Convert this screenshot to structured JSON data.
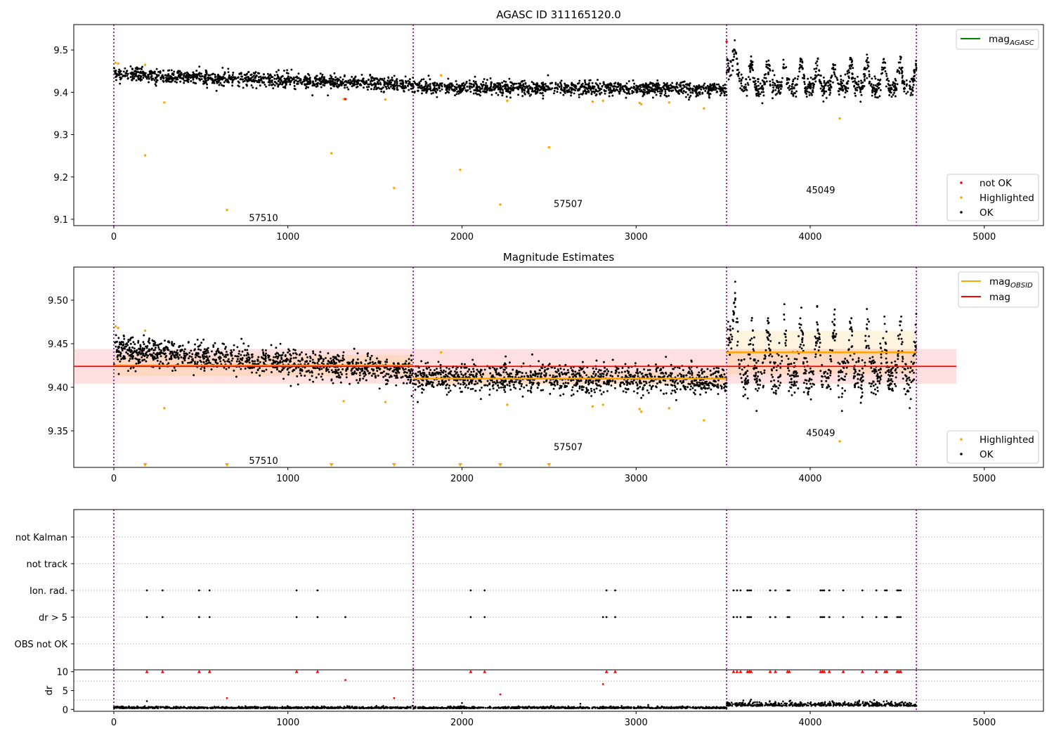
{
  "chart_data": [
    {
      "type": "scatter",
      "title": "AGASC ID 311165120.0",
      "xlabel": "",
      "ylabel": "",
      "xlim": [
        -230,
        5340
      ],
      "ylim": [
        9.085,
        9.56
      ],
      "xticks": [
        0,
        1000,
        2000,
        3000,
        4000,
        5000
      ],
      "yticks": [
        9.1,
        9.2,
        9.3,
        9.4,
        9.5
      ],
      "vlines": [
        0,
        1720,
        3520,
        4610
      ],
      "obsid_labels": [
        {
          "text": "57510",
          "x": 860,
          "y": 9.104
        },
        {
          "text": "57507",
          "x": 2610,
          "y": 9.137
        },
        {
          "text": "45049",
          "x": 4060,
          "y": 9.17
        }
      ],
      "line_legend": [
        {
          "name": "mag$_{AGASC}$",
          "label": "mag",
          "sub": "AGASC",
          "color": "#008000"
        }
      ],
      "point_legend": [
        {
          "name": "not OK",
          "color": "#ff0000"
        },
        {
          "name": "Highlighted",
          "color": "#ffa500"
        },
        {
          "name": "OK",
          "color": "#000000"
        }
      ],
      "highlighted": [
        [
          10,
          9.47
        ],
        [
          25,
          9.468
        ],
        [
          180,
          9.465
        ],
        [
          180,
          9.251
        ],
        [
          290,
          9.376
        ],
        [
          650,
          9.122
        ],
        [
          1250,
          9.256
        ],
        [
          1320,
          9.384
        ],
        [
          1560,
          9.383
        ],
        [
          1610,
          9.174
        ],
        [
          1880,
          9.44
        ],
        [
          1990,
          9.217
        ],
        [
          2220,
          9.135
        ],
        [
          2260,
          9.38
        ],
        [
          2500,
          9.27
        ],
        [
          2750,
          9.378
        ],
        [
          2810,
          9.38
        ],
        [
          3020,
          9.375
        ],
        [
          3030,
          9.372
        ],
        [
          3190,
          9.376
        ],
        [
          3390,
          9.362
        ],
        [
          4170,
          9.338
        ]
      ],
      "not_ok": [
        [
          1330,
          9.384
        ],
        [
          3520,
          9.52
        ]
      ],
      "ok_segments": [
        {
          "x": [
            0,
            1720
          ],
          "y": [
            9.443,
            9.418
          ],
          "noise": 0.008,
          "count": 1100
        },
        {
          "x": [
            1720,
            3520
          ],
          "y": [
            9.412,
            9.408
          ],
          "noise": 0.008,
          "count": 1150
        },
        {
          "x": [
            3520,
            4610
          ],
          "y": [
            9.44,
            9.44
          ],
          "noise": 0.022,
          "count": 700,
          "bursts": true
        }
      ]
    },
    {
      "type": "scatter",
      "title": "Magnitude Estimates",
      "xlabel": "",
      "ylabel": "",
      "xlim": [
        -230,
        5340
      ],
      "ylim": [
        9.308,
        9.538
      ],
      "xticks": [
        0,
        1000,
        2000,
        3000,
        4000,
        5000
      ],
      "yticks": [
        9.35,
        9.4,
        9.45,
        9.5
      ],
      "ytick_labels": [
        "9.35",
        "9.40",
        "9.45",
        "9.50"
      ],
      "vlines": [
        0,
        1720,
        3520,
        4610
      ],
      "obsid_labels": [
        {
          "text": "57510",
          "x": 860,
          "y": 9.316
        },
        {
          "text": "57507",
          "x": 2610,
          "y": 9.332
        },
        {
          "text": "45049",
          "x": 4060,
          "y": 9.348
        }
      ],
      "mag": {
        "value": 9.424,
        "band": [
          9.404,
          9.444
        ],
        "x": [
          -230,
          4840
        ],
        "color": "#ff0000"
      },
      "mag_obsid": [
        {
          "x": [
            0,
            1720
          ],
          "value": 9.425,
          "band": [
            9.413,
            9.437
          ]
        },
        {
          "x": [
            1720,
            3520
          ],
          "value": 9.41,
          "band": [
            9.402,
            9.418
          ]
        },
        {
          "x": [
            3520,
            4610
          ],
          "value": 9.44,
          "band": [
            9.415,
            9.465
          ]
        }
      ],
      "line_legend": [
        {
          "name": "mag$_{OBSID}$",
          "label": "mag",
          "sub": "OBSID",
          "color": "#ffa500"
        },
        {
          "name": "mag",
          "label": "mag",
          "sub": "",
          "color": "#ff0000"
        }
      ],
      "point_legend": [
        {
          "name": "Highlighted",
          "color": "#ffa500"
        },
        {
          "name": "OK",
          "color": "#000000"
        }
      ],
      "highlighted": [
        [
          10,
          9.47
        ],
        [
          25,
          9.468
        ],
        [
          180,
          9.465
        ],
        [
          290,
          9.376
        ],
        [
          1320,
          9.384
        ],
        [
          1560,
          9.383
        ],
        [
          1880,
          9.44
        ],
        [
          2260,
          9.38
        ],
        [
          2750,
          9.378
        ],
        [
          2810,
          9.38
        ],
        [
          3020,
          9.375
        ],
        [
          3030,
          9.372
        ],
        [
          3190,
          9.376
        ],
        [
          3390,
          9.362
        ],
        [
          4170,
          9.338
        ]
      ],
      "out_of_range_markers": [
        180,
        650,
        1250,
        1610,
        1990,
        2220,
        2500
      ]
    },
    {
      "type": "scatter",
      "title": "",
      "xlabel": "",
      "ylabel": "",
      "xlim": [
        -230,
        5340
      ],
      "categories": [
        "not Kalman",
        "not track",
        "Ion. rad.",
        "dr > 5",
        "OBS not OK"
      ],
      "vlines": [
        0,
        1720,
        3520,
        4610
      ],
      "ion_rad_x": [
        190,
        280,
        490,
        550,
        1050,
        1170,
        2050,
        2130,
        2830,
        2880,
        3560,
        3580,
        3600,
        3640,
        3650,
        3660,
        3770,
        3800,
        3870,
        3880,
        4060,
        4070,
        4080,
        4110,
        4190,
        4300,
        4380,
        4430,
        4440,
        4500,
        4510,
        4520
      ],
      "dr_gt5_x": [
        190,
        280,
        490,
        550,
        1050,
        1170,
        1330,
        2050,
        2130,
        2810,
        2830,
        2880,
        3560,
        3580,
        3600,
        3640,
        3650,
        3660,
        3770,
        3800,
        3870,
        3880,
        4060,
        4070,
        4080,
        4110,
        4190,
        4300,
        4380,
        4430,
        4440,
        4500,
        4510,
        4520
      ]
    },
    {
      "type": "scatter",
      "title": "",
      "xlabel": "",
      "ylabel": "dr",
      "xlim": [
        -230,
        5340
      ],
      "ylim": [
        -0.5,
        10.5
      ],
      "xticks": [
        0,
        1000,
        2000,
        3000,
        4000,
        5000
      ],
      "yticks": [
        0,
        5,
        10
      ],
      "vlines": [
        0,
        1720,
        3520,
        4610
      ],
      "capped_markers_x": [
        190,
        280,
        490,
        550,
        1050,
        1170,
        2050,
        2130,
        2830,
        2880,
        3560,
        3580,
        3600,
        3640,
        3650,
        3660,
        3770,
        3800,
        3870,
        3880,
        4060,
        4070,
        4080,
        4110,
        4190,
        4300,
        4380,
        4430,
        4440,
        4500,
        4510,
        4520
      ],
      "red_points": [
        [
          1330,
          7.8
        ],
        [
          2810,
          6.7
        ],
        [
          650,
          3.0
        ],
        [
          2220,
          4.0
        ],
        [
          1610,
          3.0
        ]
      ],
      "black_outliers": [
        [
          190,
          2.2
        ],
        [
          2000,
          1.7
        ],
        [
          2680,
          1.5
        ],
        [
          3660,
          2.6
        ],
        [
          3800,
          2.0
        ],
        [
          4440,
          2.2
        ],
        [
          3070,
          1.2
        ]
      ]
    }
  ]
}
